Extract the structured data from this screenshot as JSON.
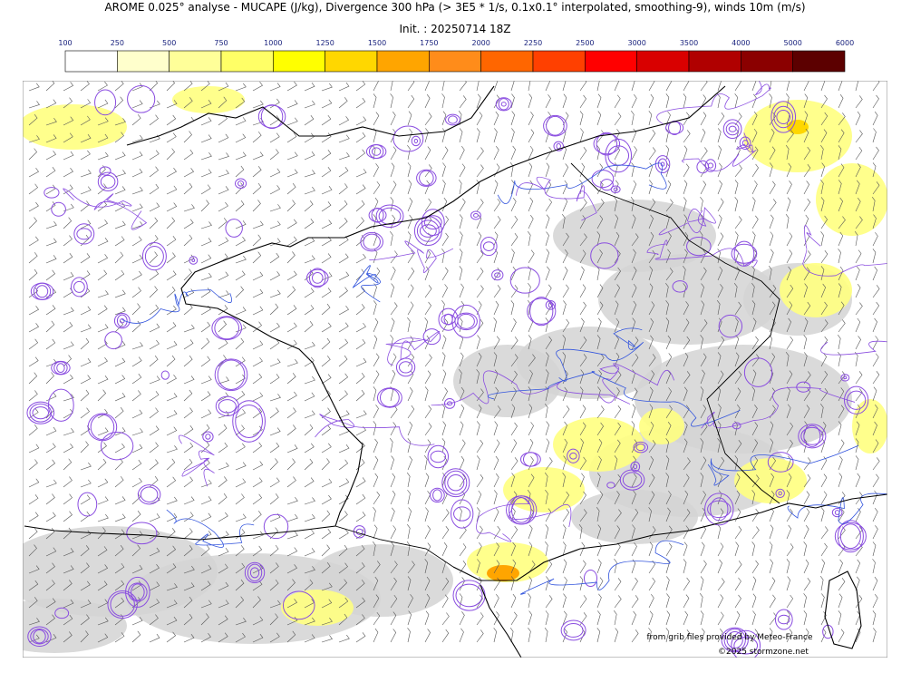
{
  "header": {
    "title": "AROME 0.025° analyse - MUCAPE (J/kg), Divergence 300 hPa (> 3E5 * 1/s, 0.1x0.1° interpolated, smoothing-9), winds 10m (m/s)",
    "subtitle": "Init. : 20250714 18Z"
  },
  "colorbar": {
    "labels": [
      100,
      250,
      500,
      750,
      1000,
      1250,
      1500,
      1750,
      2000,
      2250,
      2500,
      3000,
      3500,
      4000,
      5000,
      6000
    ],
    "colors": [
      "#ffffff",
      "#ffffcc",
      "#ffff99",
      "#ffff66",
      "#ffff00",
      "#ffd700",
      "#ffa500",
      "#ff8c1a",
      "#ff6600",
      "#ff4000",
      "#ff0000",
      "#d90000",
      "#b00000",
      "#8b0000",
      "#5c0000"
    ]
  },
  "credits": [
    "from grib files provided by Meteo-France",
    "©2025 stormzone.net"
  ]
}
